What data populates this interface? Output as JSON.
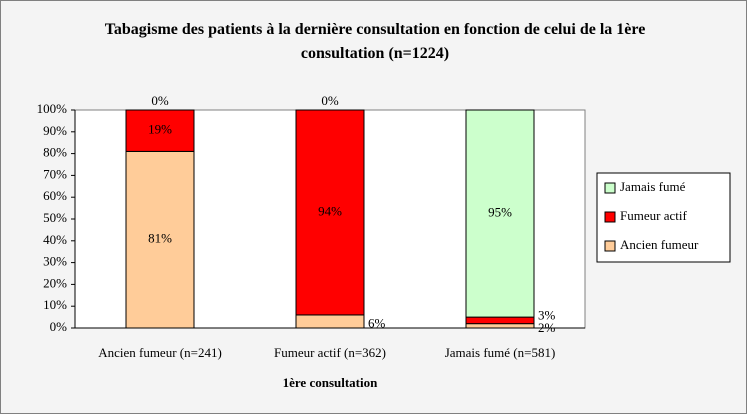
{
  "chart_data": {
    "type": "stacked_bar",
    "title": "Tabagisme des patients à la dernière consultation en fonction de celui de la 1ère consultation (n=1224)",
    "xlabel": "1ère consultation",
    "categories": [
      "Ancien fumeur (n=241)",
      "Fumeur actif (n=362)",
      "Jamais fumé (n=581)"
    ],
    "series": [
      {
        "name": "Ancien fumeur",
        "color": "#FFCC99",
        "values": [
          81,
          6,
          2
        ],
        "value_labels": [
          "81%",
          "6%",
          "2%"
        ]
      },
      {
        "name": "Fumeur actif",
        "color": "#FF0000",
        "values": [
          19,
          94,
          3
        ],
        "value_labels": [
          "19%",
          "94%",
          "3%"
        ]
      },
      {
        "name": "Jamais fumé",
        "color": "#CCFFCC",
        "values": [
          0,
          0,
          95
        ],
        "value_labels": [
          "0%",
          "0%",
          "95%"
        ]
      }
    ],
    "ylim": [
      0,
      100
    ],
    "yticks": [
      {
        "value": 0,
        "label": "0%"
      },
      {
        "value": 10,
        "label": "10%"
      },
      {
        "value": 20,
        "label": "20%"
      },
      {
        "value": 30,
        "label": "30%"
      },
      {
        "value": 40,
        "label": "40%"
      },
      {
        "value": 50,
        "label": "50%"
      },
      {
        "value": 60,
        "label": "60%"
      },
      {
        "value": 70,
        "label": "70%"
      },
      {
        "value": 80,
        "label": "80%"
      },
      {
        "value": 90,
        "label": "90%"
      },
      {
        "value": 100,
        "label": "100%"
      }
    ],
    "grid": false,
    "legend": "right"
  }
}
